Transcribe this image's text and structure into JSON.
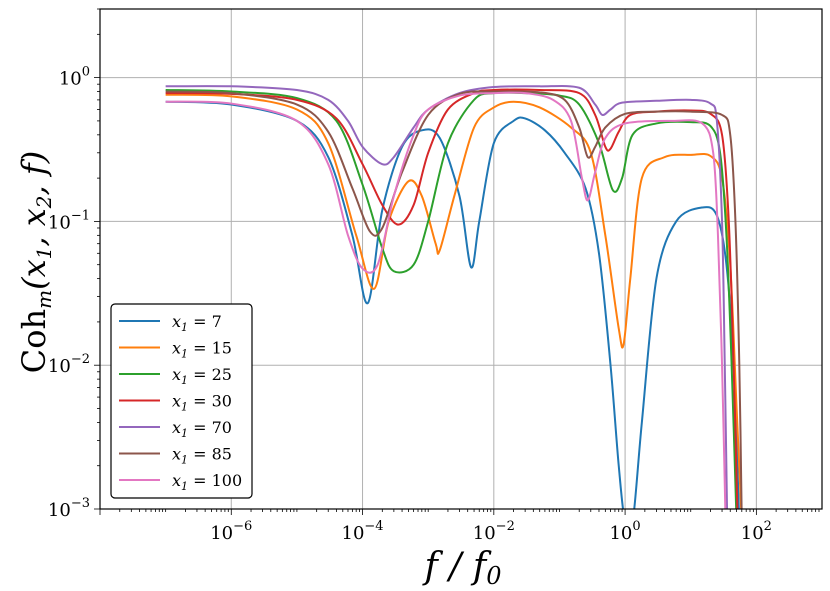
{
  "chart_data": {
    "type": "line",
    "xlabel": "f / f0",
    "ylabel": "Coh_m(x1, x2, f)",
    "x_scale": "log",
    "y_scale": "log",
    "xlim": [
      1e-08,
      1000
    ],
    "ylim": [
      0.001,
      3
    ],
    "grid": true,
    "legend_position": "lower-left",
    "x_ticks": [
      {
        "label": "10",
        "exp": "−6",
        "value": 1e-06
      },
      {
        "label": "10",
        "exp": "−4",
        "value": 0.0001
      },
      {
        "label": "10",
        "exp": "−2",
        "value": 0.01
      },
      {
        "label": "10",
        "exp": "0",
        "value": 1
      },
      {
        "label": "10",
        "exp": "2",
        "value": 100
      }
    ],
    "y_ticks": [
      {
        "label": "10",
        "exp": "0",
        "value": 1
      },
      {
        "label": "10",
        "exp": "−1",
        "value": 0.1
      },
      {
        "label": "10",
        "exp": "−2",
        "value": 0.01
      },
      {
        "label": "10",
        "exp": "−3",
        "value": 0.001
      }
    ],
    "series": [
      {
        "name": "x1 = 7",
        "color": "#1f77b4",
        "points": [
          [
            1e-07,
            0.68
          ],
          [
            1e-06,
            0.65
          ],
          [
            1e-05,
            0.5
          ],
          [
            3e-05,
            0.28
          ],
          [
            7e-05,
            0.08
          ],
          [
            0.00012,
            0.027
          ],
          [
            0.0002,
            0.12
          ],
          [
            0.0004,
            0.33
          ],
          [
            0.0008,
            0.43
          ],
          [
            0.0015,
            0.38
          ],
          [
            0.003,
            0.15
          ],
          [
            0.0045,
            0.048
          ],
          [
            0.006,
            0.1
          ],
          [
            0.01,
            0.35
          ],
          [
            0.02,
            0.5
          ],
          [
            0.03,
            0.52
          ],
          [
            0.06,
            0.43
          ],
          [
            0.12,
            0.3
          ],
          [
            0.25,
            0.17
          ],
          [
            0.4,
            0.06
          ],
          [
            0.6,
            0.01
          ],
          [
            0.8,
            0.002
          ],
          [
            1,
            0.0008
          ],
          [
            1.3,
            0.0008
          ],
          [
            1.8,
            0.004
          ],
          [
            3,
            0.04
          ],
          [
            6,
            0.1
          ],
          [
            15,
            0.125
          ],
          [
            25,
            0.11
          ],
          [
            35,
            0.05
          ],
          [
            45,
            0.01
          ],
          [
            55,
            0.0008
          ]
        ]
      },
      {
        "name": "x1 = 15",
        "color": "#ff7f0e",
        "points": [
          [
            1e-07,
            0.76
          ],
          [
            1e-06,
            0.74
          ],
          [
            1e-05,
            0.6
          ],
          [
            3e-05,
            0.35
          ],
          [
            8e-05,
            0.08
          ],
          [
            0.00015,
            0.034
          ],
          [
            0.00025,
            0.1
          ],
          [
            0.0005,
            0.19
          ],
          [
            0.0008,
            0.15
          ],
          [
            0.0013,
            0.07
          ],
          [
            0.0015,
            0.063
          ],
          [
            0.0025,
            0.15
          ],
          [
            0.005,
            0.45
          ],
          [
            0.01,
            0.62
          ],
          [
            0.02,
            0.68
          ],
          [
            0.05,
            0.62
          ],
          [
            0.15,
            0.45
          ],
          [
            0.3,
            0.3
          ],
          [
            0.5,
            0.08
          ],
          [
            0.8,
            0.018
          ],
          [
            0.95,
            0.014
          ],
          [
            1.2,
            0.04
          ],
          [
            1.8,
            0.2
          ],
          [
            4,
            0.28
          ],
          [
            10,
            0.29
          ],
          [
            20,
            0.285
          ],
          [
            30,
            0.2
          ],
          [
            40,
            0.05
          ],
          [
            50,
            0.005
          ],
          [
            60,
            0.0008
          ]
        ]
      },
      {
        "name": "x1 = 25",
        "color": "#2ca02c",
        "points": [
          [
            1e-07,
            0.82
          ],
          [
            1e-06,
            0.8
          ],
          [
            1e-05,
            0.72
          ],
          [
            4e-05,
            0.5
          ],
          [
            0.0001,
            0.18
          ],
          [
            0.0002,
            0.065
          ],
          [
            0.0003,
            0.045
          ],
          [
            0.0006,
            0.05
          ],
          [
            0.001,
            0.1
          ],
          [
            0.002,
            0.35
          ],
          [
            0.005,
            0.7
          ],
          [
            0.01,
            0.78
          ],
          [
            0.03,
            0.78
          ],
          [
            0.1,
            0.75
          ],
          [
            0.2,
            0.65
          ],
          [
            0.4,
            0.35
          ],
          [
            0.65,
            0.165
          ],
          [
            0.9,
            0.2
          ],
          [
            1.3,
            0.4
          ],
          [
            3,
            0.48
          ],
          [
            10,
            0.49
          ],
          [
            20,
            0.46
          ],
          [
            28,
            0.3
          ],
          [
            35,
            0.08
          ],
          [
            42,
            0.01
          ],
          [
            50,
            0.0008
          ]
        ]
      },
      {
        "name": "x1 = 30",
        "color": "#d62728",
        "points": [
          [
            1e-07,
            0.78
          ],
          [
            1e-06,
            0.77
          ],
          [
            1e-05,
            0.7
          ],
          [
            4e-05,
            0.52
          ],
          [
            0.0001,
            0.25
          ],
          [
            0.0002,
            0.13
          ],
          [
            0.00035,
            0.095
          ],
          [
            0.0006,
            0.13
          ],
          [
            0.001,
            0.3
          ],
          [
            0.002,
            0.6
          ],
          [
            0.005,
            0.78
          ],
          [
            0.01,
            0.82
          ],
          [
            0.05,
            0.82
          ],
          [
            0.2,
            0.78
          ],
          [
            0.35,
            0.55
          ],
          [
            0.5,
            0.33
          ],
          [
            0.6,
            0.32
          ],
          [
            0.8,
            0.42
          ],
          [
            1.2,
            0.55
          ],
          [
            3,
            0.58
          ],
          [
            10,
            0.59
          ],
          [
            20,
            0.56
          ],
          [
            30,
            0.4
          ],
          [
            38,
            0.1
          ],
          [
            45,
            0.01
          ],
          [
            52,
            0.0008
          ]
        ]
      },
      {
        "name": "x1 = 70",
        "color": "#9467bd",
        "points": [
          [
            1e-07,
            0.87
          ],
          [
            1e-06,
            0.87
          ],
          [
            1e-05,
            0.82
          ],
          [
            3e-05,
            0.7
          ],
          [
            6e-05,
            0.5
          ],
          [
            0.0001,
            0.33
          ],
          [
            0.0002,
            0.25
          ],
          [
            0.0003,
            0.28
          ],
          [
            0.0006,
            0.45
          ],
          [
            0.001,
            0.6
          ],
          [
            0.003,
            0.78
          ],
          [
            0.01,
            0.86
          ],
          [
            0.05,
            0.87
          ],
          [
            0.2,
            0.85
          ],
          [
            0.35,
            0.65
          ],
          [
            0.45,
            0.55
          ],
          [
            0.6,
            0.6
          ],
          [
            0.9,
            0.67
          ],
          [
            3,
            0.69
          ],
          [
            10,
            0.7
          ],
          [
            20,
            0.66
          ],
          [
            25,
            0.5
          ],
          [
            30,
            0.1
          ],
          [
            33,
            0.01
          ],
          [
            36,
            0.0008
          ]
        ]
      },
      {
        "name": "x1 = 85",
        "color": "#8c564b",
        "points": [
          [
            1e-07,
            0.8
          ],
          [
            1e-06,
            0.78
          ],
          [
            1e-05,
            0.65
          ],
          [
            3e-05,
            0.42
          ],
          [
            7e-05,
            0.17
          ],
          [
            0.00013,
            0.085
          ],
          [
            0.0002,
            0.09
          ],
          [
            0.0004,
            0.22
          ],
          [
            0.001,
            0.55
          ],
          [
            0.003,
            0.77
          ],
          [
            0.01,
            0.8
          ],
          [
            0.05,
            0.79
          ],
          [
            0.12,
            0.7
          ],
          [
            0.2,
            0.45
          ],
          [
            0.27,
            0.28
          ],
          [
            0.35,
            0.33
          ],
          [
            0.5,
            0.45
          ],
          [
            1,
            0.56
          ],
          [
            3,
            0.58
          ],
          [
            10,
            0.58
          ],
          [
            30,
            0.55
          ],
          [
            40,
            0.4
          ],
          [
            48,
            0.1
          ],
          [
            55,
            0.01
          ],
          [
            60,
            0.0008
          ]
        ]
      },
      {
        "name": "x1 = 100",
        "color": "#e377c2",
        "points": [
          [
            1e-07,
            0.68
          ],
          [
            1e-06,
            0.66
          ],
          [
            1e-05,
            0.5
          ],
          [
            3e-05,
            0.25
          ],
          [
            6e-05,
            0.08
          ],
          [
            0.0001,
            0.047
          ],
          [
            0.00017,
            0.05
          ],
          [
            0.0003,
            0.15
          ],
          [
            0.0006,
            0.4
          ],
          [
            0.001,
            0.6
          ],
          [
            0.003,
            0.75
          ],
          [
            0.01,
            0.78
          ],
          [
            0.03,
            0.78
          ],
          [
            0.08,
            0.7
          ],
          [
            0.15,
            0.5
          ],
          [
            0.22,
            0.2
          ],
          [
            0.27,
            0.14
          ],
          [
            0.35,
            0.22
          ],
          [
            0.5,
            0.38
          ],
          [
            1,
            0.48
          ],
          [
            5,
            0.5
          ],
          [
            15,
            0.48
          ],
          [
            22,
            0.3
          ],
          [
            26,
            0.08
          ],
          [
            30,
            0.01
          ],
          [
            34,
            0.0008
          ]
        ]
      }
    ]
  }
}
